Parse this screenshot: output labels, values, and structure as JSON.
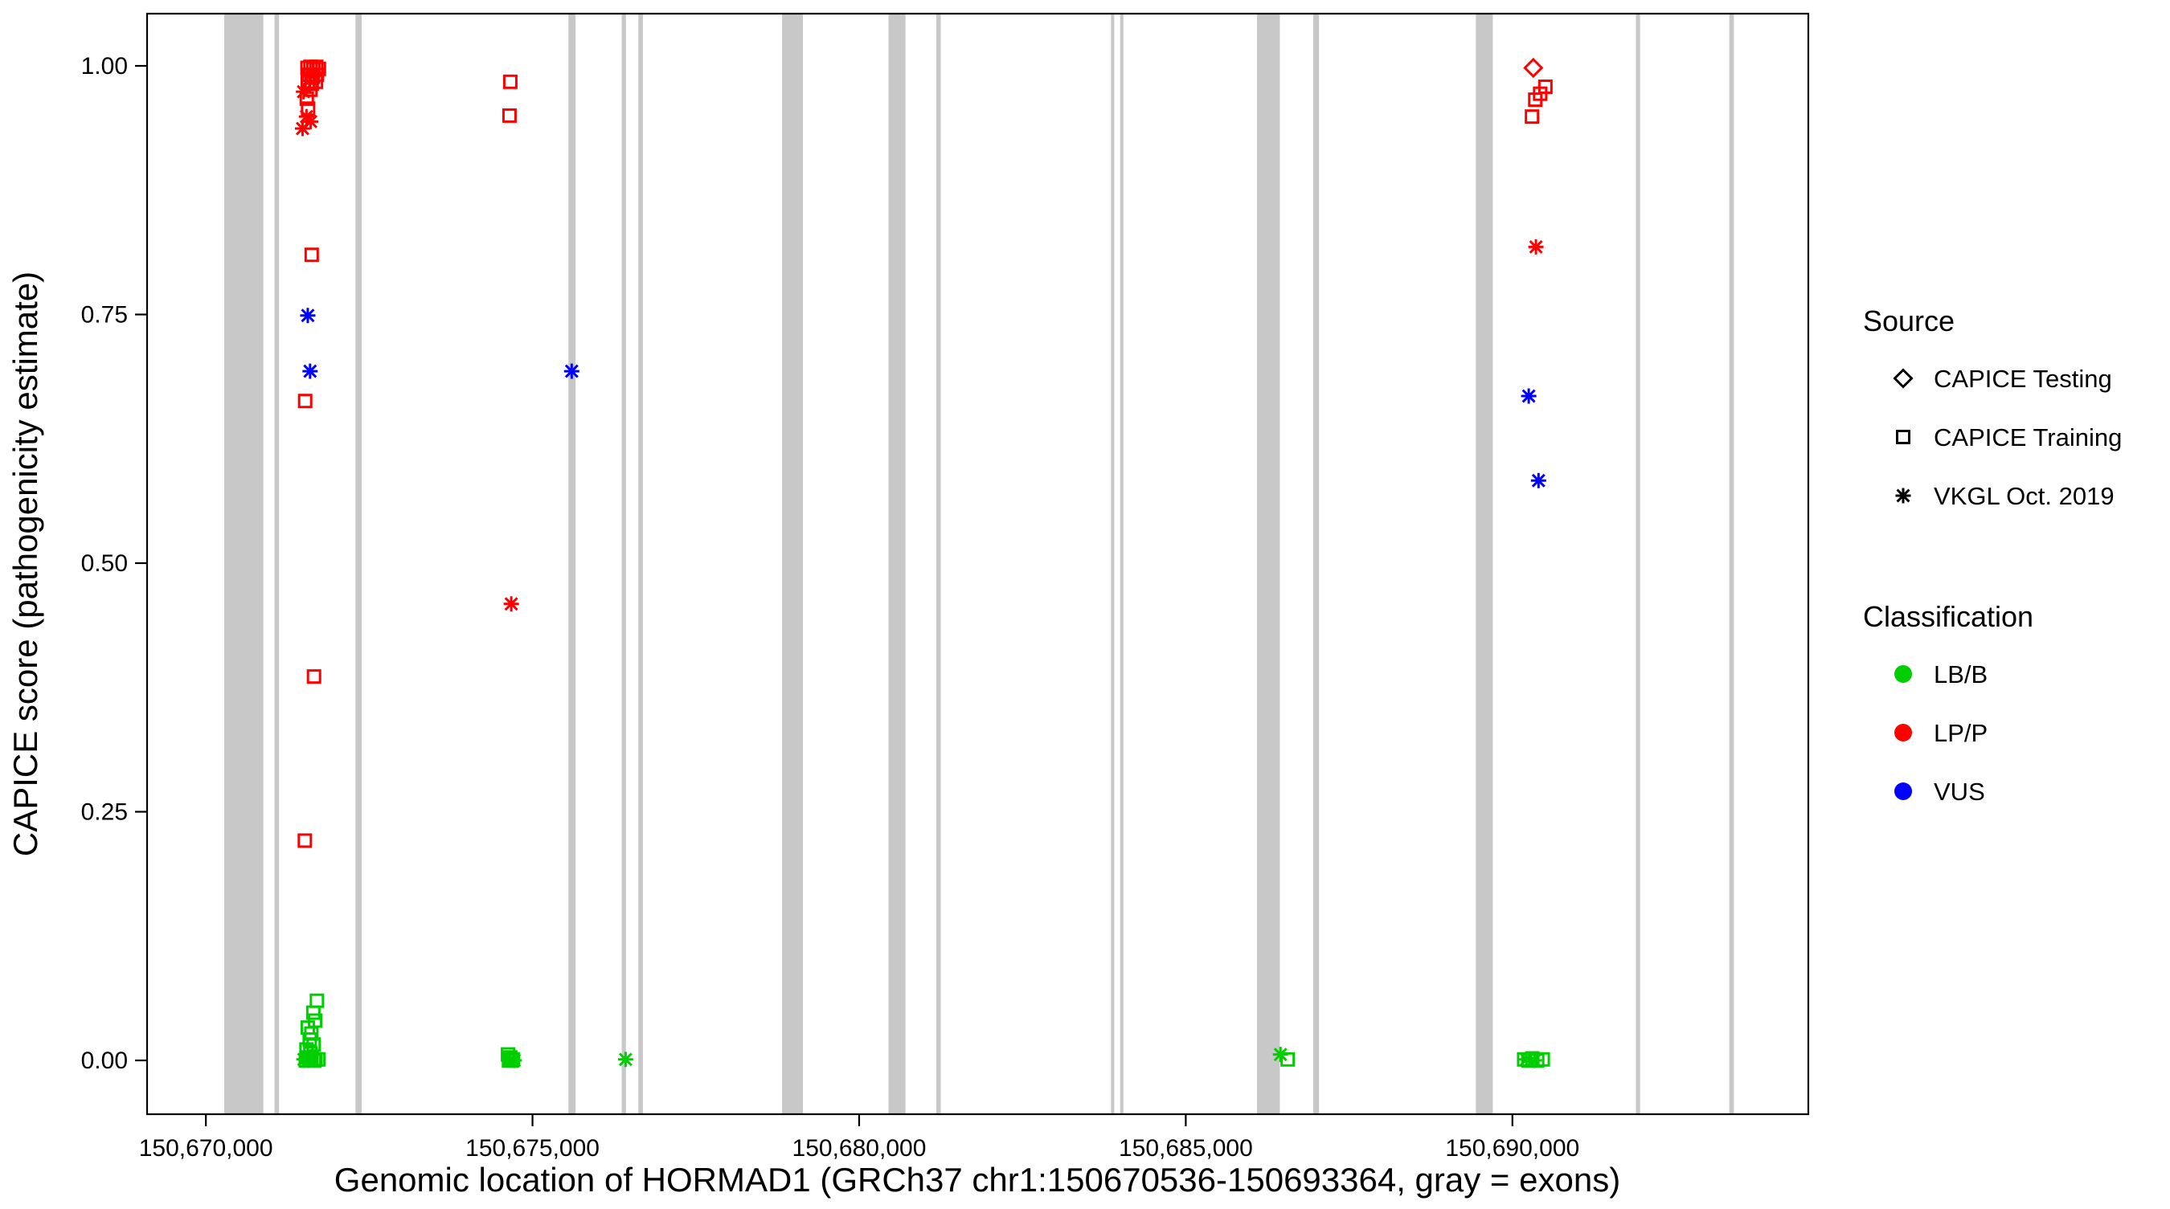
{
  "figure": {
    "background": "#FFFFFF",
    "panel_border_color": "#000000"
  },
  "chart_data": {
    "type": "scatter",
    "title": "",
    "xlabel": "Genomic location of HORMAD1 (GRCh37 chr1:150670536-150693364, gray = exons)",
    "ylabel": "CAPICE score (pathogenicity estimate)",
    "xlim": [
      150669100,
      150694530
    ],
    "ylim": [
      -0.0541,
      1.0525
    ],
    "grid": "off",
    "x_ticks": {
      "values": [
        150670000,
        150675000,
        150680000,
        150685000,
        150690000
      ],
      "labels": [
        "150,670,000",
        "150,675,000",
        "150,680,000",
        "150,685,000",
        "150,690,000"
      ]
    },
    "y_ticks": {
      "values": [
        0,
        0.25,
        0.5,
        0.75,
        1
      ],
      "labels": [
        "0.00",
        "0.25",
        "0.50",
        "0.75",
        "1.00"
      ]
    },
    "exon_color": "#C8C8C8",
    "exons": [
      [
        150670280,
        150670880
      ],
      [
        150671050,
        150671120
      ],
      [
        150672290,
        150672385
      ],
      [
        150675550,
        150675660
      ],
      [
        150676365,
        150676430
      ],
      [
        150676620,
        150676690
      ],
      [
        150678820,
        150679140
      ],
      [
        150680450,
        150680710
      ],
      [
        150681180,
        150681250
      ],
      [
        150683855,
        150683905
      ],
      [
        150683995,
        150684045
      ],
      [
        150686090,
        150686440
      ],
      [
        150686950,
        150687040
      ],
      [
        150689440,
        150689700
      ],
      [
        150691890,
        150691955
      ],
      [
        150693320,
        150693390
      ]
    ],
    "colors": {
      "LB/B": "#00CE00",
      "LP/P": "#FF0000",
      "VUS": "#0000FF"
    },
    "shapes": {
      "CAPICE Testing": "diamond-open",
      "CAPICE Training": "square-open",
      "VKGL Oct. 2019": "asterisk"
    },
    "points": [
      {
        "x": 150671555,
        "y": 0.998,
        "source": "CAPICE Training",
        "class": "LP/P"
      },
      {
        "x": 150671600,
        "y": 0.999,
        "source": "CAPICE Training",
        "class": "LP/P"
      },
      {
        "x": 150671645,
        "y": 0.997,
        "source": "CAPICE Training",
        "class": "LP/P"
      },
      {
        "x": 150671690,
        "y": 0.999,
        "source": "CAPICE Training",
        "class": "LP/P"
      },
      {
        "x": 150671730,
        "y": 0.997,
        "source": "CAPICE Training",
        "class": "LP/P"
      },
      {
        "x": 150671580,
        "y": 0.991,
        "source": "CAPICE Training",
        "class": "LP/P"
      },
      {
        "x": 150671640,
        "y": 0.989,
        "source": "CAPICE Training",
        "class": "LP/P"
      },
      {
        "x": 150671700,
        "y": 0.991,
        "source": "CAPICE Training",
        "class": "LP/P"
      },
      {
        "x": 150671560,
        "y": 0.984,
        "source": "CAPICE Training",
        "class": "LP/P"
      },
      {
        "x": 150671620,
        "y": 0.982,
        "source": "CAPICE Training",
        "class": "LP/P"
      },
      {
        "x": 150671685,
        "y": 0.984,
        "source": "CAPICE Training",
        "class": "LP/P"
      },
      {
        "x": 150671600,
        "y": 0.976,
        "source": "CAPICE Training",
        "class": "LP/P"
      },
      {
        "x": 150671545,
        "y": 0.967,
        "source": "CAPICE Training",
        "class": "LP/P"
      },
      {
        "x": 150671565,
        "y": 0.957,
        "source": "CAPICE Training",
        "class": "LP/P"
      },
      {
        "x": 150671620,
        "y": 0.81,
        "source": "CAPICE Training",
        "class": "LP/P"
      },
      {
        "x": 150671520,
        "y": 0.663,
        "source": "CAPICE Training",
        "class": "LP/P"
      },
      {
        "x": 150671655,
        "y": 0.386,
        "source": "CAPICE Training",
        "class": "LP/P"
      },
      {
        "x": 150671515,
        "y": 0.221,
        "source": "CAPICE Training",
        "class": "LP/P"
      },
      {
        "x": 150671495,
        "y": 0.974,
        "source": "VKGL Oct. 2019",
        "class": "LP/P"
      },
      {
        "x": 150671540,
        "y": 0.949,
        "source": "VKGL Oct. 2019",
        "class": "LP/P"
      },
      {
        "x": 150671605,
        "y": 0.944,
        "source": "VKGL Oct. 2019",
        "class": "LP/P"
      },
      {
        "x": 150671480,
        "y": 0.937,
        "source": "VKGL Oct. 2019",
        "class": "LP/P"
      },
      {
        "x": 150671560,
        "y": 0.749,
        "source": "VKGL Oct. 2019",
        "class": "VUS"
      },
      {
        "x": 150671595,
        "y": 0.693,
        "source": "VKGL Oct. 2019",
        "class": "VUS"
      },
      {
        "x": 150671700,
        "y": 0.06,
        "source": "CAPICE Training",
        "class": "LB/B"
      },
      {
        "x": 150671645,
        "y": 0.048,
        "source": "CAPICE Training",
        "class": "LB/B"
      },
      {
        "x": 150671672,
        "y": 0.04,
        "source": "CAPICE Training",
        "class": "LB/B"
      },
      {
        "x": 150671560,
        "y": 0.033,
        "source": "CAPICE Training",
        "class": "LB/B"
      },
      {
        "x": 150671615,
        "y": 0.027,
        "source": "CAPICE Training",
        "class": "LB/B"
      },
      {
        "x": 150671590,
        "y": 0.021,
        "source": "CAPICE Training",
        "class": "LB/B"
      },
      {
        "x": 150671650,
        "y": 0.016,
        "source": "CAPICE Training",
        "class": "LB/B"
      },
      {
        "x": 150671540,
        "y": 0.011,
        "source": "CAPICE Training",
        "class": "LB/B"
      },
      {
        "x": 150671600,
        "y": 0.007,
        "source": "CAPICE Training",
        "class": "LB/B"
      },
      {
        "x": 150671558,
        "y": 0.003,
        "source": "CAPICE Training",
        "class": "LB/B"
      },
      {
        "x": 150671618,
        "y": 0.002,
        "source": "CAPICE Training",
        "class": "LB/B"
      },
      {
        "x": 150671678,
        "y": 0.001,
        "source": "CAPICE Training",
        "class": "LB/B"
      },
      {
        "x": 150671530,
        "y": 0.0,
        "source": "CAPICE Training",
        "class": "LB/B"
      },
      {
        "x": 150671585,
        "y": 0.0,
        "source": "CAPICE Training",
        "class": "LB/B"
      },
      {
        "x": 150671660,
        "y": 0.0,
        "source": "CAPICE Training",
        "class": "LB/B"
      },
      {
        "x": 150671722,
        "y": 0.001,
        "source": "CAPICE Training",
        "class": "LB/B"
      },
      {
        "x": 150671500,
        "y": 0.001,
        "source": "VKGL Oct. 2019",
        "class": "LB/B"
      },
      {
        "x": 150671565,
        "y": 0.0,
        "source": "VKGL Oct. 2019",
        "class": "LB/B"
      },
      {
        "x": 150674660,
        "y": 0.984,
        "source": "CAPICE Training",
        "class": "LP/P"
      },
      {
        "x": 150674648,
        "y": 0.95,
        "source": "CAPICE Training",
        "class": "LP/P"
      },
      {
        "x": 150674675,
        "y": 0.459,
        "source": "VKGL Oct. 2019",
        "class": "LP/P"
      },
      {
        "x": 150674625,
        "y": 0.006,
        "source": "CAPICE Training",
        "class": "LB/B"
      },
      {
        "x": 150674660,
        "y": 0.003,
        "source": "CAPICE Training",
        "class": "LB/B"
      },
      {
        "x": 150674700,
        "y": 0.001,
        "source": "CAPICE Training",
        "class": "LB/B"
      },
      {
        "x": 150674640,
        "y": 0.0,
        "source": "CAPICE Training",
        "class": "LB/B"
      },
      {
        "x": 150674685,
        "y": 0.0,
        "source": "CAPICE Training",
        "class": "LB/B"
      },
      {
        "x": 150674655,
        "y": 0.001,
        "source": "VKGL Oct. 2019",
        "class": "LB/B"
      },
      {
        "x": 150674720,
        "y": 0.0,
        "source": "VKGL Oct. 2019",
        "class": "LB/B"
      },
      {
        "x": 150675600,
        "y": 0.693,
        "source": "VKGL Oct. 2019",
        "class": "VUS"
      },
      {
        "x": 150676425,
        "y": 0.001,
        "source": "VKGL Oct. 2019",
        "class": "LB/B"
      },
      {
        "x": 150686450,
        "y": 0.006,
        "source": "VKGL Oct. 2019",
        "class": "LB/B"
      },
      {
        "x": 150686560,
        "y": 0.001,
        "source": "CAPICE Training",
        "class": "LB/B"
      },
      {
        "x": 150690320,
        "y": 0.998,
        "source": "CAPICE Testing",
        "class": "LP/P"
      },
      {
        "x": 150690505,
        "y": 0.979,
        "source": "CAPICE Training",
        "class": "LP/P"
      },
      {
        "x": 150690425,
        "y": 0.972,
        "source": "CAPICE Training",
        "class": "LP/P"
      },
      {
        "x": 150690350,
        "y": 0.966,
        "source": "CAPICE Training",
        "class": "LP/P"
      },
      {
        "x": 150690300,
        "y": 0.949,
        "source": "CAPICE Training",
        "class": "LP/P"
      },
      {
        "x": 150690360,
        "y": 0.818,
        "source": "VKGL Oct. 2019",
        "class": "LP/P"
      },
      {
        "x": 150690250,
        "y": 0.668,
        "source": "VKGL Oct. 2019",
        "class": "VUS"
      },
      {
        "x": 150690400,
        "y": 0.583,
        "source": "VKGL Oct. 2019",
        "class": "VUS"
      },
      {
        "x": 150690180,
        "y": 0.001,
        "source": "CAPICE Training",
        "class": "LB/B"
      },
      {
        "x": 150690245,
        "y": 0.0,
        "source": "CAPICE Training",
        "class": "LB/B"
      },
      {
        "x": 150690305,
        "y": 0.002,
        "source": "CAPICE Training",
        "class": "LB/B"
      },
      {
        "x": 150690380,
        "y": 0.0,
        "source": "CAPICE Training",
        "class": "LB/B"
      },
      {
        "x": 150690465,
        "y": 0.001,
        "source": "CAPICE Training",
        "class": "LB/B"
      },
      {
        "x": 150690215,
        "y": 0.001,
        "source": "VKGL Oct. 2019",
        "class": "LB/B"
      },
      {
        "x": 150690335,
        "y": 0.0,
        "source": "VKGL Oct. 2019",
        "class": "LB/B"
      }
    ],
    "legend": {
      "source_title": "Source",
      "source_items": [
        {
          "shape": "diamond-open",
          "label": "CAPICE Testing"
        },
        {
          "shape": "square-open",
          "label": "CAPICE Training"
        },
        {
          "shape": "asterisk",
          "label": "VKGL Oct. 2019"
        }
      ],
      "classification_title": "Classification",
      "classification_items": [
        {
          "class": "LB/B",
          "label": "LB/B"
        },
        {
          "class": "LP/P",
          "label": "LP/P"
        },
        {
          "class": "VUS",
          "label": "VUS"
        }
      ],
      "position": "right"
    }
  }
}
